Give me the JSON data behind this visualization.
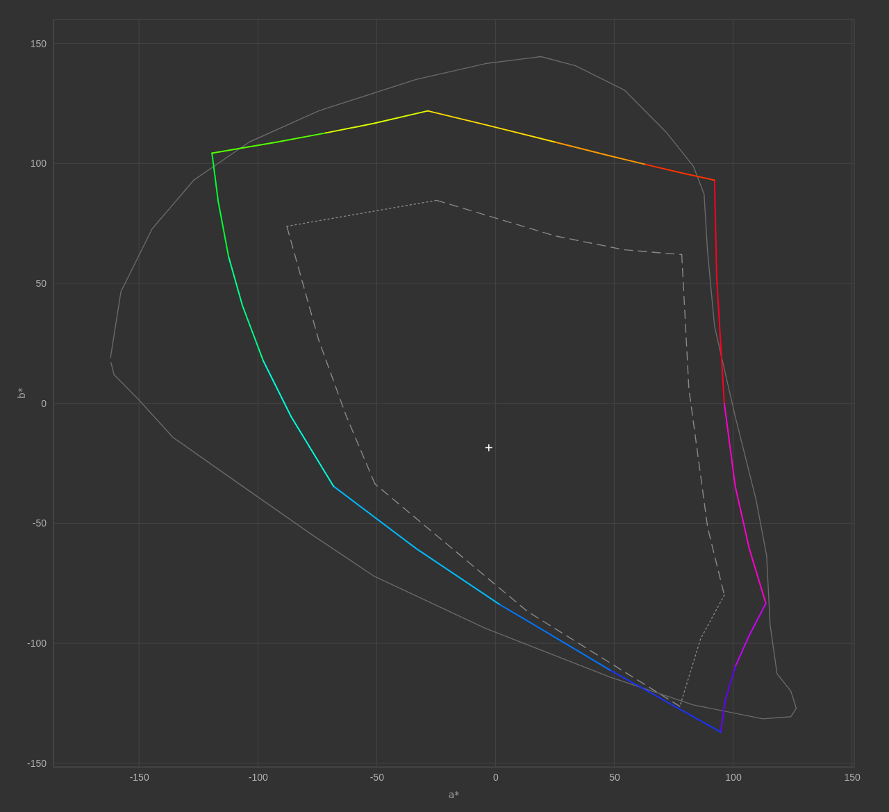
{
  "chart_data": {
    "type": "line",
    "xlabel": "a*",
    "ylabel": "b*",
    "xlim": [
      -186,
      151
    ],
    "ylim": [
      -151.5,
      160
    ],
    "xticks": [
      -150,
      -100,
      -50,
      0,
      50,
      100,
      150
    ],
    "yticks": [
      -150,
      -100,
      -50,
      0,
      50,
      100,
      150
    ],
    "grid": true,
    "line_style": "solid",
    "series": [
      {
        "color": "#6a6a6a",
        "x": [
          -162,
          -157.6,
          -144.5,
          -127,
          -103.6,
          -74.4,
          -33.4,
          -4.2,
          19.1,
          33.7,
          54.2,
          71.7,
          83.3,
          87.8,
          89.2,
          92.2,
          100.9,
          109.7,
          114.1,
          115.6,
          118.5,
          124.3,
          126.6,
          124.3,
          112.6,
          83.3,
          48.3,
          -4.2,
          -51,
          -77.3,
          -106.5,
          -135.7,
          -150.3,
          -160.5,
          -161.8
        ],
        "values": [
          19.1,
          46.6,
          72.7,
          93,
          108.9,
          121.9,
          135,
          141.6,
          144.5,
          140.7,
          130.6,
          113.2,
          98.8,
          87.2,
          64,
          32.1,
          -5.5,
          -40.3,
          -63.4,
          -92.4,
          -112.7,
          -119.9,
          -127.1,
          -130.6,
          -131.5,
          -125.7,
          -114.1,
          -93.8,
          -72.1,
          -54.7,
          -34.5,
          -14.2,
          1.7,
          11.9,
          17
        ]
      },
      {
        "type": "line",
        "color": "#8a8a8a",
        "line_style": "dashed",
        "x": [
          -24.8,
          -4.2,
          25,
          54.2,
          78.4
        ],
        "values": [
          84.6,
          78.5,
          69.8,
          64,
          62
        ]
      },
      {
        "type": "line",
        "color": "#8a8a8a",
        "line_style": "dashed",
        "x": [
          78.4,
          81.4,
          89.3,
          96.3
        ],
        "values": [
          62,
          6.1,
          -51.8,
          -79.9
        ]
      },
      {
        "type": "line",
        "color": "#8a8a8a",
        "line_style": "dotted",
        "x": [
          96.3,
          86.3,
          77.6
        ],
        "values": [
          -79.9,
          -98.2,
          -126.3
        ]
      },
      {
        "type": "line",
        "color": "#8a8a8a",
        "line_style": "dashed",
        "x": [
          77.6,
          13.3,
          -50.7
        ],
        "values": [
          -126.3,
          -86.6,
          -33.6
        ]
      },
      {
        "type": "line",
        "color": "#8a8a8a",
        "line_style": "dashed",
        "x": [
          -50.7,
          -62.7,
          -74.4,
          -87.8
        ],
        "values": [
          -33.6,
          -5.5,
          26.4,
          73.8
        ]
      },
      {
        "type": "line",
        "color": "#8a8a8a",
        "line_style": "dotted",
        "x": [
          -87.8,
          -24.8
        ],
        "values": [
          73.8,
          84.6
        ]
      },
      {
        "type": "line",
        "color": "#ff0022",
        "x": [
          92.2,
          93.1,
          96.3
        ],
        "values": [
          93,
          52.4,
          0
        ]
      },
      {
        "type": "line",
        "color": "#ff00cc",
        "x": [
          96.3,
          100.9,
          106.8,
          113.8
        ],
        "values": [
          0,
          -34.5,
          -60.5,
          -83.4
        ]
      },
      {
        "type": "line",
        "color": "#cc00ff",
        "x": [
          113.8,
          106.8,
          100.9
        ],
        "values": [
          -83.4,
          -96.7,
          -109.8
        ]
      },
      {
        "type": "line",
        "color": "#6600ff",
        "x": [
          100.9,
          96.6,
          94.8
        ],
        "values": [
          -109.8,
          -124.2,
          -137
        ]
      },
      {
        "type": "line",
        "color": "#1a33ff",
        "x": [
          94.8,
          48.3
        ],
        "values": [
          -137,
          -111.2
        ]
      },
      {
        "type": "line",
        "color": "#0077ff",
        "x": [
          48.3,
          1.6
        ],
        "values": [
          -111.2,
          -83.7
        ]
      },
      {
        "type": "line",
        "color": "#00bbff",
        "x": [
          1.6,
          -33.4,
          -68.2
        ],
        "values": [
          -83.7,
          -60.5,
          -34.5
        ]
      },
      {
        "type": "line",
        "color": "#00ffdd",
        "x": [
          -68.2,
          -86,
          -97.7
        ],
        "values": [
          -34.5,
          -5.5,
          17.7
        ]
      },
      {
        "type": "line",
        "color": "#00ff88",
        "x": [
          -97.7,
          -106.5,
          -112.3
        ],
        "values": [
          17.7,
          40.8,
          61.1
        ]
      },
      {
        "type": "line",
        "color": "#00ff33",
        "x": [
          -112.3,
          -116.7,
          -119.3
        ],
        "values": [
          61.1,
          84.3,
          104.3
        ]
      },
      {
        "type": "line",
        "color": "#55ff00",
        "x": [
          -119.3,
          -91.9,
          -71.4
        ],
        "values": [
          104.3,
          108.9,
          112.7
        ]
      },
      {
        "type": "line",
        "color": "#ddff00",
        "x": [
          -71.4,
          -51,
          -28.5
        ],
        "values": [
          112.7,
          116.7,
          121.9
        ]
      },
      {
        "type": "line",
        "color": "#ffdd00",
        "x": [
          -28.5,
          -4.2,
          25
        ],
        "values": [
          121.9,
          116.1,
          108.9
        ]
      },
      {
        "type": "line",
        "color": "#ff9900",
        "x": [
          25,
          48.3,
          63
        ],
        "values": [
          108.9,
          103.1,
          99.6
        ]
      },
      {
        "type": "line",
        "color": "#ff3300",
        "x": [
          63,
          79,
          92.2
        ],
        "values": [
          99.6,
          95.9,
          93
        ]
      },
      {
        "type": "scatter",
        "color": "#ffffff",
        "marker": "cross",
        "x": [
          -2.8
        ],
        "values": [
          -18.5
        ]
      }
    ]
  }
}
